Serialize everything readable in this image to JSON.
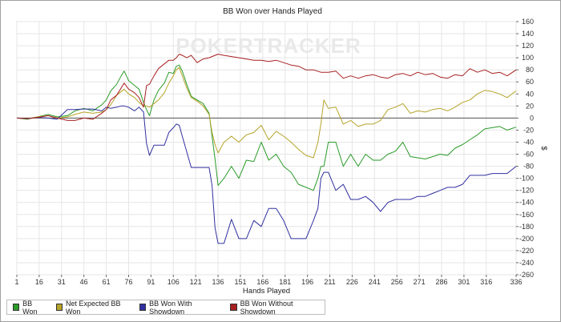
{
  "chart_data": {
    "type": "line",
    "title": "BB Won over Hands Played",
    "xlabel": "Hands Played",
    "ylabel": "$",
    "xlim": [
      1,
      336
    ],
    "ylim": [
      -260,
      160
    ],
    "x_ticks": [
      1,
      16,
      31,
      46,
      61,
      76,
      91,
      106,
      121,
      136,
      151,
      166,
      181,
      196,
      211,
      226,
      241,
      256,
      271,
      286,
      301,
      316,
      336
    ],
    "y_ticks": [
      160,
      140,
      120,
      100,
      80,
      60,
      40,
      20,
      0,
      -20,
      -40,
      -60,
      -80,
      -100,
      -120,
      -140,
      -160,
      -180,
      -200,
      -220,
      -240,
      -260
    ],
    "watermark": "POKERTRACKER",
    "grid": true,
    "y_axis_side": "right",
    "legend_position": "bottom-left",
    "series": [
      {
        "name": "BB Won",
        "color": "#2a9a28",
        "points": [
          [
            1,
            0
          ],
          [
            8,
            -2
          ],
          [
            15,
            2
          ],
          [
            22,
            6
          ],
          [
            28,
            2
          ],
          [
            35,
            4
          ],
          [
            40,
            12
          ],
          [
            46,
            16
          ],
          [
            52,
            12
          ],
          [
            58,
            22
          ],
          [
            61,
            30
          ],
          [
            64,
            45
          ],
          [
            68,
            56
          ],
          [
            71,
            70
          ],
          [
            73,
            78
          ],
          [
            76,
            62
          ],
          [
            80,
            54
          ],
          [
            83,
            48
          ],
          [
            86,
            26
          ],
          [
            88,
            14
          ],
          [
            90,
            4
          ],
          [
            93,
            30
          ],
          [
            96,
            46
          ],
          [
            100,
            58
          ],
          [
            103,
            76
          ],
          [
            106,
            74
          ],
          [
            108,
            86
          ],
          [
            110,
            88
          ],
          [
            112,
            78
          ],
          [
            115,
            56
          ],
          [
            118,
            36
          ],
          [
            122,
            30
          ],
          [
            126,
            24
          ],
          [
            130,
            8
          ],
          [
            132,
            -30
          ],
          [
            134,
            -68
          ],
          [
            136,
            -112
          ],
          [
            140,
            -100
          ],
          [
            145,
            -80
          ],
          [
            150,
            -100
          ],
          [
            155,
            -70
          ],
          [
            160,
            -72
          ],
          [
            165,
            -40
          ],
          [
            170,
            -70
          ],
          [
            175,
            -60
          ],
          [
            180,
            -80
          ],
          [
            185,
            -90
          ],
          [
            190,
            -110
          ],
          [
            195,
            -115
          ],
          [
            200,
            -120
          ],
          [
            203,
            -100
          ],
          [
            205,
            -80
          ],
          [
            207,
            -80
          ],
          [
            210,
            -40
          ],
          [
            215,
            -40
          ],
          [
            220,
            -80
          ],
          [
            225,
            -60
          ],
          [
            230,
            -80
          ],
          [
            235,
            -60
          ],
          [
            240,
            -70
          ],
          [
            245,
            -70
          ],
          [
            250,
            -60
          ],
          [
            255,
            -55
          ],
          [
            260,
            -40
          ],
          [
            265,
            -64
          ],
          [
            270,
            -66
          ],
          [
            275,
            -68
          ],
          [
            280,
            -64
          ],
          [
            285,
            -60
          ],
          [
            290,
            -62
          ],
          [
            295,
            -50
          ],
          [
            300,
            -44
          ],
          [
            305,
            -36
          ],
          [
            310,
            -28
          ],
          [
            315,
            -18
          ],
          [
            320,
            -16
          ],
          [
            325,
            -14
          ],
          [
            330,
            -20
          ],
          [
            336,
            -15
          ]
        ]
      },
      {
        "name": "Net Expected BB Won",
        "color": "#b5a42a",
        "points": [
          [
            1,
            0
          ],
          [
            8,
            -1
          ],
          [
            15,
            2
          ],
          [
            22,
            4
          ],
          [
            28,
            0
          ],
          [
            35,
            2
          ],
          [
            40,
            6
          ],
          [
            46,
            10
          ],
          [
            52,
            8
          ],
          [
            58,
            10
          ],
          [
            61,
            14
          ],
          [
            64,
            22
          ],
          [
            68,
            38
          ],
          [
            71,
            44
          ],
          [
            73,
            48
          ],
          [
            76,
            40
          ],
          [
            80,
            34
          ],
          [
            83,
            26
          ],
          [
            86,
            20
          ],
          [
            88,
            20
          ],
          [
            90,
            18
          ],
          [
            93,
            24
          ],
          [
            96,
            30
          ],
          [
            100,
            42
          ],
          [
            103,
            58
          ],
          [
            106,
            70
          ],
          [
            108,
            80
          ],
          [
            110,
            84
          ],
          [
            112,
            70
          ],
          [
            115,
            50
          ],
          [
            118,
            34
          ],
          [
            122,
            28
          ],
          [
            126,
            20
          ],
          [
            130,
            6
          ],
          [
            132,
            -24
          ],
          [
            134,
            -44
          ],
          [
            136,
            -58
          ],
          [
            140,
            -40
          ],
          [
            145,
            -30
          ],
          [
            150,
            -40
          ],
          [
            155,
            -28
          ],
          [
            160,
            -24
          ],
          [
            165,
            -12
          ],
          [
            170,
            -36
          ],
          [
            175,
            -22
          ],
          [
            180,
            -30
          ],
          [
            185,
            -40
          ],
          [
            190,
            -52
          ],
          [
            195,
            -62
          ],
          [
            200,
            -66
          ],
          [
            203,
            -40
          ],
          [
            205,
            -10
          ],
          [
            207,
            30
          ],
          [
            210,
            16
          ],
          [
            215,
            18
          ],
          [
            220,
            -10
          ],
          [
            225,
            -4
          ],
          [
            230,
            -14
          ],
          [
            235,
            -10
          ],
          [
            240,
            -10
          ],
          [
            245,
            -4
          ],
          [
            250,
            14
          ],
          [
            255,
            18
          ],
          [
            260,
            24
          ],
          [
            265,
            8
          ],
          [
            270,
            12
          ],
          [
            275,
            10
          ],
          [
            280,
            14
          ],
          [
            285,
            16
          ],
          [
            290,
            12
          ],
          [
            295,
            18
          ],
          [
            300,
            26
          ],
          [
            305,
            30
          ],
          [
            310,
            40
          ],
          [
            315,
            46
          ],
          [
            320,
            44
          ],
          [
            325,
            40
          ],
          [
            330,
            34
          ],
          [
            336,
            45
          ]
        ]
      },
      {
        "name": "BB Won With Showdown",
        "color": "#3030a0",
        "points": [
          [
            1,
            0
          ],
          [
            8,
            -1
          ],
          [
            15,
            1
          ],
          [
            22,
            0
          ],
          [
            28,
            -2
          ],
          [
            35,
            14
          ],
          [
            40,
            14
          ],
          [
            46,
            15
          ],
          [
            52,
            15
          ],
          [
            58,
            12
          ],
          [
            61,
            18
          ],
          [
            64,
            16
          ],
          [
            68,
            18
          ],
          [
            71,
            20
          ],
          [
            73,
            20
          ],
          [
            76,
            18
          ],
          [
            80,
            12
          ],
          [
            83,
            18
          ],
          [
            86,
            10
          ],
          [
            88,
            -42
          ],
          [
            90,
            -62
          ],
          [
            93,
            -45
          ],
          [
            96,
            -45
          ],
          [
            100,
            -45
          ],
          [
            103,
            -24
          ],
          [
            106,
            -16
          ],
          [
            108,
            -10
          ],
          [
            110,
            -12
          ],
          [
            112,
            -30
          ],
          [
            115,
            -56
          ],
          [
            118,
            -82
          ],
          [
            122,
            -82
          ],
          [
            126,
            -82
          ],
          [
            130,
            -82
          ],
          [
            132,
            -112
          ],
          [
            134,
            -182
          ],
          [
            136,
            -208
          ],
          [
            140,
            -208
          ],
          [
            145,
            -168
          ],
          [
            150,
            -200
          ],
          [
            155,
            -200
          ],
          [
            160,
            -170
          ],
          [
            165,
            -180
          ],
          [
            170,
            -150
          ],
          [
            175,
            -150
          ],
          [
            180,
            -170
          ],
          [
            185,
            -200
          ],
          [
            190,
            -200
          ],
          [
            195,
            -200
          ],
          [
            200,
            -170
          ],
          [
            203,
            -150
          ],
          [
            205,
            -100
          ],
          [
            207,
            -90
          ],
          [
            210,
            -90
          ],
          [
            215,
            -120
          ],
          [
            220,
            -110
          ],
          [
            225,
            -135
          ],
          [
            230,
            -135
          ],
          [
            235,
            -130
          ],
          [
            240,
            -140
          ],
          [
            245,
            -155
          ],
          [
            250,
            -140
          ],
          [
            255,
            -135
          ],
          [
            260,
            -135
          ],
          [
            265,
            -135
          ],
          [
            270,
            -130
          ],
          [
            275,
            -130
          ],
          [
            280,
            -125
          ],
          [
            285,
            -120
          ],
          [
            290,
            -115
          ],
          [
            295,
            -115
          ],
          [
            300,
            -110
          ],
          [
            305,
            -95
          ],
          [
            310,
            -95
          ],
          [
            315,
            -95
          ],
          [
            320,
            -92
          ],
          [
            325,
            -92
          ],
          [
            330,
            -92
          ],
          [
            336,
            -80
          ]
        ]
      },
      {
        "name": "BB Won Without Showdown",
        "color": "#a82020",
        "points": [
          [
            1,
            0
          ],
          [
            8,
            -1
          ],
          [
            15,
            1
          ],
          [
            22,
            4
          ],
          [
            28,
            0
          ],
          [
            35,
            -4
          ],
          [
            40,
            -4
          ],
          [
            46,
            0
          ],
          [
            52,
            -2
          ],
          [
            58,
            8
          ],
          [
            61,
            14
          ],
          [
            64,
            30
          ],
          [
            68,
            38
          ],
          [
            71,
            50
          ],
          [
            73,
            58
          ],
          [
            76,
            48
          ],
          [
            80,
            42
          ],
          [
            83,
            34
          ],
          [
            86,
            18
          ],
          [
            88,
            54
          ],
          [
            90,
            56
          ],
          [
            93,
            70
          ],
          [
            96,
            82
          ],
          [
            100,
            90
          ],
          [
            103,
            96
          ],
          [
            106,
            96
          ],
          [
            108,
            100
          ],
          [
            110,
            106
          ],
          [
            112,
            104
          ],
          [
            115,
            100
          ],
          [
            118,
            104
          ],
          [
            122,
            92
          ],
          [
            126,
            98
          ],
          [
            130,
            100
          ],
          [
            134,
            104
          ],
          [
            136,
            106
          ],
          [
            140,
            104
          ],
          [
            145,
            102
          ],
          [
            150,
            100
          ],
          [
            155,
            98
          ],
          [
            160,
            96
          ],
          [
            165,
            96
          ],
          [
            170,
            94
          ],
          [
            175,
            96
          ],
          [
            180,
            92
          ],
          [
            185,
            88
          ],
          [
            190,
            86
          ],
          [
            195,
            80
          ],
          [
            200,
            80
          ],
          [
            205,
            76
          ],
          [
            210,
            76
          ],
          [
            215,
            78
          ],
          [
            220,
            66
          ],
          [
            225,
            70
          ],
          [
            230,
            66
          ],
          [
            235,
            70
          ],
          [
            240,
            72
          ],
          [
            245,
            68
          ],
          [
            250,
            66
          ],
          [
            255,
            72
          ],
          [
            260,
            74
          ],
          [
            265,
            70
          ],
          [
            270,
            76
          ],
          [
            275,
            72
          ],
          [
            280,
            74
          ],
          [
            285,
            68
          ],
          [
            290,
            66
          ],
          [
            295,
            72
          ],
          [
            300,
            70
          ],
          [
            305,
            82
          ],
          [
            310,
            76
          ],
          [
            315,
            80
          ],
          [
            320,
            74
          ],
          [
            325,
            76
          ],
          [
            330,
            70
          ],
          [
            336,
            80
          ]
        ]
      }
    ]
  }
}
